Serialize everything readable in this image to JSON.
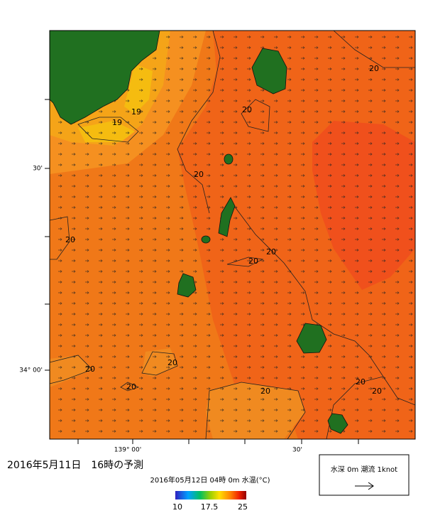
{
  "map": {
    "lat_labels": [
      "30'",
      "34° 00'"
    ],
    "lon_labels": [
      "139° 00'",
      "30'"
    ],
    "contour_labels": [
      "20",
      "20",
      "19",
      "19",
      "20",
      "20",
      "20",
      "20",
      "20",
      "20",
      "20",
      "20",
      "20",
      "20"
    ]
  },
  "title": "2016年5月11日　16時の予測",
  "subtitle": "2016年05月12日 04時 0m 水温(°C)",
  "colorbar": {
    "ticks": [
      "10",
      "17.5",
      "25"
    ]
  },
  "legend": {
    "text": "水深 0m 潮流 1knot"
  }
}
